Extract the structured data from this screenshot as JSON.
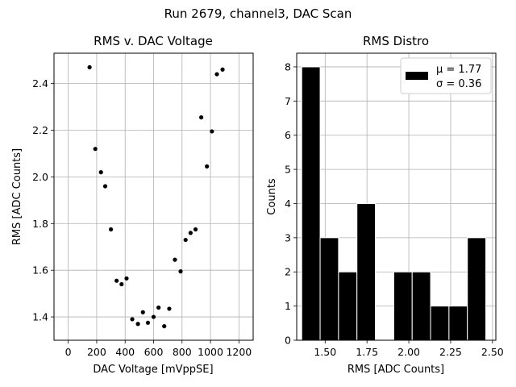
{
  "suptitle": "Run 2679, channel3, DAC Scan",
  "chart_data": [
    {
      "type": "scatter",
      "title": "RMS v. DAC Voltage",
      "xlabel": "DAC Voltage [mVppSE]",
      "ylabel": "RMS [ADC Counts]",
      "xlim": [
        -100,
        1300
      ],
      "ylim": [
        1.3,
        2.53
      ],
      "xticks": [
        0,
        200,
        400,
        600,
        800,
        1000,
        1200
      ],
      "xtick_labels": [
        "0",
        "200",
        "400",
        "600",
        "800",
        "1000",
        "1200"
      ],
      "yticks": [
        1.4,
        1.6,
        1.8,
        2.0,
        2.2,
        2.4
      ],
      "ytick_labels": [
        "1.4",
        "1.6",
        "1.8",
        "2.0",
        "2.2",
        "2.4"
      ],
      "marker_color": "#000000",
      "grid": true,
      "x": [
        150,
        190,
        230,
        260,
        300,
        340,
        375,
        410,
        450,
        490,
        525,
        560,
        600,
        635,
        675,
        710,
        750,
        790,
        825,
        860,
        895,
        935,
        975,
        1010,
        1045,
        1085
      ],
      "y": [
        2.47,
        2.12,
        2.02,
        1.96,
        1.775,
        1.555,
        1.54,
        1.565,
        1.39,
        1.37,
        1.42,
        1.375,
        1.4,
        1.44,
        1.36,
        1.435,
        1.645,
        1.595,
        1.73,
        1.76,
        1.775,
        2.255,
        2.045,
        2.195,
        2.44,
        2.46
      ]
    },
    {
      "type": "bar",
      "subtype": "histogram",
      "title": "RMS Distro",
      "xlabel": "RMS [ADC Counts]",
      "ylabel": "Counts",
      "xlim": [
        1.33,
        2.52
      ],
      "ylim": [
        0,
        8.4
      ],
      "xticks": [
        1.5,
        1.75,
        2.0,
        2.25,
        2.5
      ],
      "xtick_labels": [
        "1.50",
        "1.75",
        "2.00",
        "2.25",
        "2.50"
      ],
      "yticks": [
        0,
        1,
        2,
        3,
        4,
        5,
        6,
        7,
        8
      ],
      "ytick_labels": [
        "0",
        "1",
        "2",
        "3",
        "4",
        "5",
        "6",
        "7",
        "8"
      ],
      "bin_edges": [
        1.36,
        1.47,
        1.58,
        1.69,
        1.8,
        1.91,
        2.02,
        2.13,
        2.24,
        2.35,
        2.46
      ],
      "counts": [
        8,
        3,
        2,
        4,
        0,
        2,
        2,
        1,
        1,
        3
      ],
      "bar_color": "#000000",
      "edge_color": "#ffffff",
      "grid": true,
      "legend": {
        "placement": "top-right",
        "mu_label": "μ = 1.77",
        "sigma_label": "σ = 0.36"
      }
    }
  ]
}
